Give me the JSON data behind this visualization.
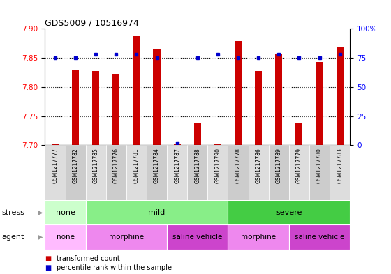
{
  "title": "GDS5009 / 10516974",
  "samples": [
    "GSM1217777",
    "GSM1217782",
    "GSM1217785",
    "GSM1217776",
    "GSM1217781",
    "GSM1217784",
    "GSM1217787",
    "GSM1217788",
    "GSM1217790",
    "GSM1217778",
    "GSM1217786",
    "GSM1217789",
    "GSM1217779",
    "GSM1217780",
    "GSM1217783"
  ],
  "transformed_count": [
    7.701,
    7.828,
    7.827,
    7.822,
    7.888,
    7.866,
    7.701,
    7.738,
    7.701,
    7.879,
    7.827,
    7.856,
    7.738,
    7.843,
    7.868
  ],
  "percentile_rank": [
    75,
    75,
    78,
    78,
    78,
    75,
    2,
    75,
    78,
    75,
    75,
    78,
    75,
    75,
    78
  ],
  "ylim_left": [
    7.7,
    7.9
  ],
  "ylim_right": [
    0,
    100
  ],
  "yticks_left": [
    7.7,
    7.75,
    7.8,
    7.85,
    7.9
  ],
  "yticks_right": [
    0,
    25,
    50,
    75,
    100
  ],
  "bar_color": "#cc0000",
  "dot_color": "#0000cc",
  "stress_groups": [
    {
      "label": "none",
      "start": 0,
      "end": 2,
      "color": "#ccffcc"
    },
    {
      "label": "mild",
      "start": 2,
      "end": 9,
      "color": "#88ee88"
    },
    {
      "label": "severe",
      "start": 9,
      "end": 15,
      "color": "#44cc44"
    }
  ],
  "agent_groups": [
    {
      "label": "none",
      "start": 0,
      "end": 2,
      "color": "#ffbbff"
    },
    {
      "label": "morphine",
      "start": 2,
      "end": 6,
      "color": "#ee88ee"
    },
    {
      "label": "saline vehicle",
      "start": 6,
      "end": 9,
      "color": "#cc44cc"
    },
    {
      "label": "morphine",
      "start": 9,
      "end": 12,
      "color": "#ee88ee"
    },
    {
      "label": "saline vehicle",
      "start": 12,
      "end": 15,
      "color": "#cc44cc"
    }
  ],
  "dotted_lines": [
    7.75,
    7.8,
    7.85
  ],
  "sample_col_colors": [
    "#dddddd",
    "#cccccc"
  ]
}
